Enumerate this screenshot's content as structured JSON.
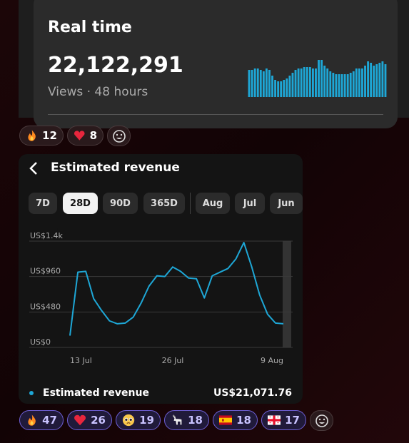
{
  "realtime": {
    "title": "Real time",
    "value": "22,122,291",
    "subtitle": "Views · 48 hours",
    "bars": [
      38,
      38,
      40,
      40,
      38,
      36,
      40,
      38,
      30,
      24,
      22,
      22,
      24,
      26,
      30,
      34,
      38,
      40,
      40,
      42,
      42,
      42,
      40,
      40,
      52,
      52,
      44,
      40,
      36,
      34,
      32,
      32,
      32,
      32,
      32,
      34,
      36,
      40,
      40,
      40,
      44,
      50,
      48,
      44,
      46,
      48,
      50,
      46
    ]
  },
  "reactions_top": [
    {
      "emoji": "fire",
      "count": "12"
    },
    {
      "emoji": "heart",
      "count": "8"
    }
  ],
  "revenue_card": {
    "title": "Estimated revenue",
    "tabs": [
      "7D",
      "28D",
      "90D",
      "365D",
      "Aug",
      "Jul",
      "Jun"
    ],
    "selected_tab": 1,
    "legend": "Estimated revenue",
    "total": "US$21,071.76"
  },
  "chart_data": {
    "type": "line",
    "categories": [
      "13 Jul",
      null,
      null,
      null,
      null,
      null,
      null,
      null,
      null,
      null,
      null,
      null,
      null,
      "26 Jul",
      null,
      null,
      null,
      null,
      null,
      null,
      null,
      null,
      null,
      null,
      null,
      null,
      null,
      "9 Aug"
    ],
    "series": [
      {
        "name": "Estimated revenue",
        "color": "#1ea7d6",
        "values": [
          160,
          1020,
          1030,
          660,
          500,
          360,
          320,
          330,
          410,
          600,
          830,
          970,
          960,
          1090,
          1030,
          940,
          930,
          670,
          970,
          1020,
          1070,
          1200,
          1420,
          1090,
          710,
          450,
          330,
          320
        ]
      }
    ],
    "ylim": [
      0,
      1440
    ],
    "yticks": [
      {
        "value": 0,
        "label": "US$0"
      },
      {
        "value": 480,
        "label": "US$480"
      },
      {
        "value": 960,
        "label": "US$960"
      },
      {
        "value": 1440,
        "label": "US$1.4k"
      }
    ],
    "grid": true
  },
  "reactions_bottom": [
    {
      "emoji": "fire",
      "count": "47"
    },
    {
      "emoji": "heart",
      "count": "26"
    },
    {
      "emoji": "pleading",
      "count": "19"
    },
    {
      "emoji": "goat",
      "count": "18"
    },
    {
      "emoji": "spain",
      "count": "18"
    },
    {
      "emoji": "georgia",
      "count": "17"
    }
  ]
}
